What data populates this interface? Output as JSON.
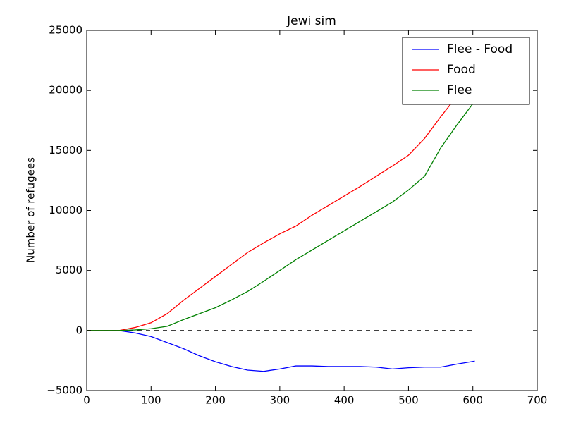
{
  "chart_data": {
    "type": "line",
    "title": "Jewi sim",
    "y_label": "Number of refugees",
    "x": [
      0,
      25,
      50,
      75,
      100,
      125,
      150,
      175,
      200,
      225,
      250,
      275,
      300,
      325,
      350,
      375,
      400,
      425,
      450,
      475,
      500,
      525,
      550,
      575,
      603
    ],
    "series": [
      {
        "name": "Flee - Food",
        "color": "#0000ff",
        "values": [
          0,
          0,
          0,
          -200,
          -500,
          -1000,
          -1500,
          -2100,
          -2600,
          -3000,
          -3300,
          -3400,
          -3200,
          -2950,
          -2950,
          -3000,
          -3000,
          -3000,
          -3050,
          -3200,
          -3100,
          -3050,
          -3050,
          -2800,
          -2550
        ]
      },
      {
        "name": "Food",
        "color": "#ff0000",
        "values": [
          0,
          0,
          0,
          250,
          650,
          1400,
          2500,
          3500,
          4500,
          5500,
          6500,
          7300,
          8050,
          8700,
          9600,
          10400,
          11200,
          12000,
          12850,
          13700,
          14600,
          16000,
          17800,
          19500,
          21500
        ]
      },
      {
        "name": "Flee",
        "color": "#008000",
        "values": [
          0,
          0,
          0,
          50,
          150,
          350,
          900,
          1400,
          1900,
          2550,
          3250,
          4100,
          5000,
          5900,
          6700,
          7500,
          8300,
          9100,
          9900,
          10700,
          11700,
          12850,
          15200,
          17100,
          19100
        ]
      }
    ],
    "hline": 0,
    "xlim": [
      0,
      700
    ],
    "xticks": [
      0,
      100,
      200,
      300,
      400,
      500,
      600,
      700
    ],
    "ylim": [
      -5000,
      25000
    ],
    "yticks": [
      {
        "value": -5000,
        "label": "−5000"
      },
      0,
      5000,
      10000,
      15000,
      20000,
      25000
    ],
    "legend": "upper right",
    "grid": false
  }
}
